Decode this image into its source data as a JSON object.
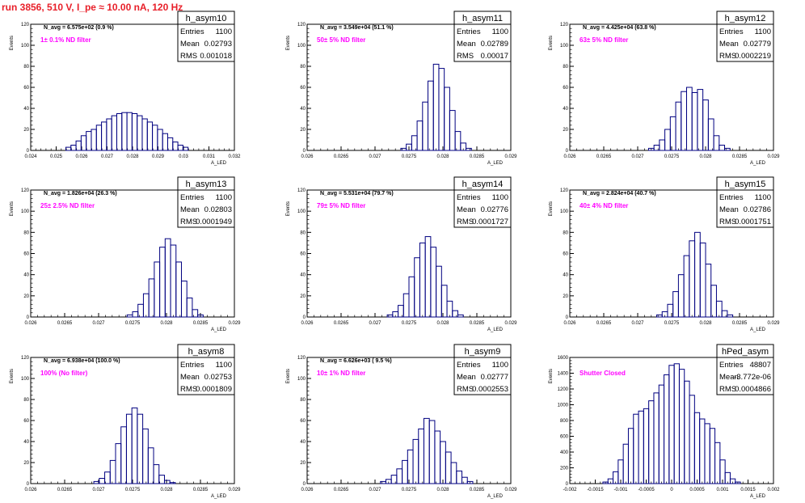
{
  "run_title": "run 3856,   510 V, I_pe ≈ 10.00 nA, 120 Hz",
  "colors": {
    "title": "#e8202a",
    "magenta": "#ff00ff",
    "hist": "#000080"
  },
  "chart_data": [
    {
      "type": "histogram",
      "name": "h_asym10",
      "annotation": "N_avg = 6.575e+02 (0.9 %)",
      "filter_label": "1± 0.1% ND filter",
      "stats": {
        "entries_label": "Entries",
        "entries": "1100",
        "mean_label": "Mean",
        "mean": "0.02793",
        "rms_label": "RMS",
        "rms": "0.001018"
      },
      "xlabel": "A_LED",
      "ylabel": "Events",
      "xlim": [
        0.024,
        0.032
      ],
      "ylim": [
        0,
        120
      ],
      "xticks": [
        "0.024",
        "0.025",
        "0.026",
        "0.027",
        "0.028",
        "0.029",
        "0.03",
        "0.031",
        "0.032"
      ],
      "yticks": [
        "0",
        "20",
        "40",
        "60",
        "80",
        "100",
        "120"
      ],
      "x": [
        0.02548,
        0.02568,
        0.02588,
        0.02608,
        0.02628,
        0.02648,
        0.02668,
        0.02688,
        0.02708,
        0.02728,
        0.02748,
        0.02768,
        0.02788,
        0.02808,
        0.02828,
        0.02848,
        0.02868,
        0.02888,
        0.02908,
        0.02928,
        0.02948,
        0.02968,
        0.02988,
        0.03008
      ],
      "values": [
        3,
        5,
        9,
        14,
        18,
        20,
        24,
        27,
        30,
        33,
        35,
        36,
        36,
        35,
        33,
        30,
        27,
        24,
        20,
        16,
        12,
        8,
        5,
        3
      ]
    },
    {
      "type": "histogram",
      "name": "h_asym11",
      "annotation": "N_avg = 3.549e+04 (51.1 %)",
      "filter_label": "50± 5% ND filter",
      "stats": {
        "entries_label": "Entries",
        "entries": "1100",
        "mean_label": "Mean",
        "mean": "0.02789",
        "rms_label": "RMS",
        "rms": "0.00017"
      },
      "xlabel": "A_LED",
      "ylabel": "Events",
      "xlim": [
        0.026,
        0.029
      ],
      "ylim": [
        0,
        120
      ],
      "xticks": [
        "0.026",
        "0.0265",
        "0.027",
        "0.0275",
        "0.028",
        "0.0285",
        "0.029"
      ],
      "yticks": [
        "0",
        "20",
        "40",
        "60",
        "80",
        "100",
        "120"
      ],
      "x": [
        0.02742,
        0.0275,
        0.02758,
        0.02766,
        0.02774,
        0.02782,
        0.0279,
        0.02798,
        0.02806,
        0.02814,
        0.02822,
        0.0283,
        0.02838
      ],
      "values": [
        2,
        6,
        14,
        28,
        46,
        66,
        82,
        78,
        60,
        38,
        18,
        7,
        2
      ]
    },
    {
      "type": "histogram",
      "name": "h_asym12",
      "annotation": "N_avg = 4.425e+04 (63.8 %)",
      "filter_label": "63± 5% ND filter",
      "stats": {
        "entries_label": "Entries",
        "entries": "1100",
        "mean_label": "Mean",
        "mean": "0.02779",
        "rms_label": "RMS",
        "rms": "0.0002219"
      },
      "xlabel": "A_LED",
      "ylabel": "Events",
      "xlim": [
        0.026,
        0.029
      ],
      "ylim": [
        0,
        120
      ],
      "xticks": [
        "0.026",
        "0.0265",
        "0.027",
        "0.0275",
        "0.028",
        "0.0285",
        "0.029"
      ],
      "yticks": [
        "0",
        "20",
        "40",
        "60",
        "80",
        "100",
        "120"
      ],
      "x": [
        0.0272,
        0.02728,
        0.02736,
        0.02744,
        0.02752,
        0.0276,
        0.02768,
        0.02776,
        0.02784,
        0.02792,
        0.028,
        0.02808,
        0.02816,
        0.02824,
        0.02832
      ],
      "values": [
        2,
        5,
        10,
        20,
        32,
        46,
        56,
        60,
        55,
        58,
        48,
        30,
        14,
        5,
        2
      ]
    },
    {
      "type": "histogram",
      "name": "h_asym13",
      "annotation": "N_avg = 1.826e+04 (26.3 %)",
      "filter_label": "25± 2.5% ND filter",
      "stats": {
        "entries_label": "Entries",
        "entries": "1100",
        "mean_label": "Mean",
        "mean": "0.02803",
        "rms_label": "RMS",
        "rms": "0.0001949"
      },
      "xlabel": "A_LED",
      "ylabel": "Events",
      "xlim": [
        0.026,
        0.029
      ],
      "ylim": [
        0,
        120
      ],
      "xticks": [
        "0.026",
        "0.0265",
        "0.027",
        "0.0275",
        "0.028",
        "0.0285",
        "0.029"
      ],
      "yticks": [
        "0",
        "20",
        "40",
        "60",
        "80",
        "100",
        "120"
      ],
      "x": [
        0.02746,
        0.02754,
        0.02762,
        0.0277,
        0.02778,
        0.02786,
        0.02794,
        0.02802,
        0.0281,
        0.02818,
        0.02826,
        0.02834,
        0.02842,
        0.0285
      ],
      "values": [
        2,
        5,
        12,
        22,
        36,
        52,
        66,
        74,
        68,
        52,
        34,
        18,
        7,
        2
      ]
    },
    {
      "type": "histogram",
      "name": "h_asym14",
      "annotation": "N_avg = 5.531e+04 (79.7 %)",
      "filter_label": "79± 5% ND filter",
      "stats": {
        "entries_label": "Entries",
        "entries": "1100",
        "mean_label": "Mean",
        "mean": "0.02776",
        "rms_label": "RMS",
        "rms": "0.0001727"
      },
      "xlabel": "A_LED",
      "ylabel": "Events",
      "xlim": [
        0.026,
        0.029
      ],
      "ylim": [
        0,
        120
      ],
      "xticks": [
        "0.026",
        "0.0265",
        "0.027",
        "0.0275",
        "0.028",
        "0.0285",
        "0.029"
      ],
      "yticks": [
        "0",
        "20",
        "40",
        "60",
        "80",
        "100",
        "120"
      ],
      "x": [
        0.02722,
        0.0273,
        0.02738,
        0.02746,
        0.02754,
        0.02762,
        0.0277,
        0.02778,
        0.02786,
        0.02794,
        0.02802,
        0.0281,
        0.02818,
        0.02826
      ],
      "values": [
        2,
        5,
        11,
        22,
        38,
        56,
        70,
        76,
        66,
        48,
        30,
        15,
        6,
        2
      ]
    },
    {
      "type": "histogram",
      "name": "h_asym15",
      "annotation": "N_avg = 2.824e+04 (40.7 %)",
      "filter_label": "40± 4% ND filter",
      "stats": {
        "entries_label": "Entries",
        "entries": "1100",
        "mean_label": "Mean",
        "mean": "0.02786",
        "rms_label": "RMS",
        "rms": "0.0001751"
      },
      "xlabel": "A_LED",
      "ylabel": "Events",
      "xlim": [
        0.026,
        0.029
      ],
      "ylim": [
        0,
        120
      ],
      "xticks": [
        "0.026",
        "0.0265",
        "0.027",
        "0.0275",
        "0.028",
        "0.0285",
        "0.029"
      ],
      "yticks": [
        "0",
        "20",
        "40",
        "60",
        "80",
        "100",
        "120"
      ],
      "x": [
        0.02732,
        0.0274,
        0.02748,
        0.02756,
        0.02764,
        0.02772,
        0.0278,
        0.02788,
        0.02796,
        0.02804,
        0.02812,
        0.0282,
        0.02828,
        0.02836
      ],
      "values": [
        2,
        5,
        12,
        24,
        40,
        58,
        72,
        80,
        70,
        50,
        30,
        15,
        6,
        2
      ]
    },
    {
      "type": "histogram",
      "name": "h_asym8",
      "annotation": "N_avg = 6.938e+04 (100.0 %)",
      "filter_label": "100% (No filter)",
      "stats": {
        "entries_label": "Entries",
        "entries": "1100",
        "mean_label": "Mean",
        "mean": "0.02753",
        "rms_label": "RMS",
        "rms": "0.0001809"
      },
      "xlabel": "A_LED",
      "ylabel": "Events",
      "xlim": [
        0.026,
        0.029
      ],
      "ylim": [
        0,
        120
      ],
      "xticks": [
        "0.026",
        "0.0265",
        "0.027",
        "0.0275",
        "0.028",
        "0.0285",
        "0.029"
      ],
      "yticks": [
        "0",
        "20",
        "40",
        "60",
        "80",
        "100",
        "120"
      ],
      "x": [
        0.02697,
        0.02705,
        0.02713,
        0.02721,
        0.02729,
        0.02737,
        0.02745,
        0.02753,
        0.02761,
        0.02769,
        0.02777,
        0.02785,
        0.02793,
        0.02801,
        0.02809
      ],
      "values": [
        2,
        5,
        11,
        22,
        38,
        54,
        66,
        72,
        66,
        52,
        34,
        18,
        8,
        3,
        1
      ]
    },
    {
      "type": "histogram",
      "name": "h_asym9",
      "annotation": "N_avg = 6.626e+03 ( 9.5 %)",
      "filter_label": "10± 1% ND filter",
      "stats": {
        "entries_label": "Entries",
        "entries": "1100",
        "mean_label": "Mean",
        "mean": "0.02777",
        "rms_label": "RMS",
        "rms": "0.0002553"
      },
      "xlabel": "A_LED",
      "ylabel": "Events",
      "xlim": [
        0.026,
        0.029
      ],
      "ylim": [
        0,
        120
      ],
      "xticks": [
        "0.026",
        "0.0265",
        "0.027",
        "0.0275",
        "0.028",
        "0.0285",
        "0.029"
      ],
      "yticks": [
        "0",
        "20",
        "40",
        "60",
        "80",
        "100",
        "120"
      ],
      "x": [
        0.02712,
        0.0272,
        0.02728,
        0.02736,
        0.02744,
        0.02752,
        0.0276,
        0.02768,
        0.02776,
        0.02784,
        0.02792,
        0.028,
        0.02808,
        0.02816,
        0.02824,
        0.02832,
        0.0284
      ],
      "values": [
        2,
        4,
        8,
        14,
        22,
        32,
        42,
        52,
        62,
        60,
        50,
        40,
        30,
        20,
        12,
        6,
        2
      ]
    },
    {
      "type": "histogram",
      "name": "hPed_asym",
      "annotation": "",
      "filter_label": "Shutter Closed",
      "stats": {
        "entries_label": "Entries",
        "entries": "48807",
        "mean_label": "Mean",
        "mean": "-3.772e-06",
        "rms_label": "RMS",
        "rms": "0.0004866"
      },
      "xlabel": "A_LED",
      "ylabel": "Events",
      "xlim": [
        -0.002,
        0.002
      ],
      "ylim": [
        0,
        1600
      ],
      "xticks": [
        "-0.002",
        "-0.0015",
        "-0.001",
        "-0.0005",
        "0",
        "0.0005",
        "0.001",
        "0.0015",
        "0.002"
      ],
      "yticks": [
        "0",
        "200",
        "400",
        "600",
        "800",
        "1000",
        "1200",
        "1400",
        "1600"
      ],
      "x": [
        -0.0013,
        -0.0012,
        -0.0011,
        -0.001,
        -0.0009,
        -0.0008,
        -0.0007,
        -0.0006,
        -0.0005,
        -0.0004,
        -0.0003,
        -0.0002,
        -0.0001,
        0,
        0.0001,
        0.0002,
        0.0003,
        0.0004,
        0.0005,
        0.0006,
        0.0007,
        0.0008,
        0.0009,
        0.001,
        0.0011,
        0.0012,
        0.0013
      ],
      "values": [
        20,
        60,
        150,
        300,
        500,
        700,
        880,
        920,
        950,
        1050,
        1150,
        1250,
        1380,
        1500,
        1520,
        1450,
        1300,
        1120,
        900,
        820,
        760,
        700,
        520,
        300,
        140,
        60,
        20
      ]
    }
  ]
}
